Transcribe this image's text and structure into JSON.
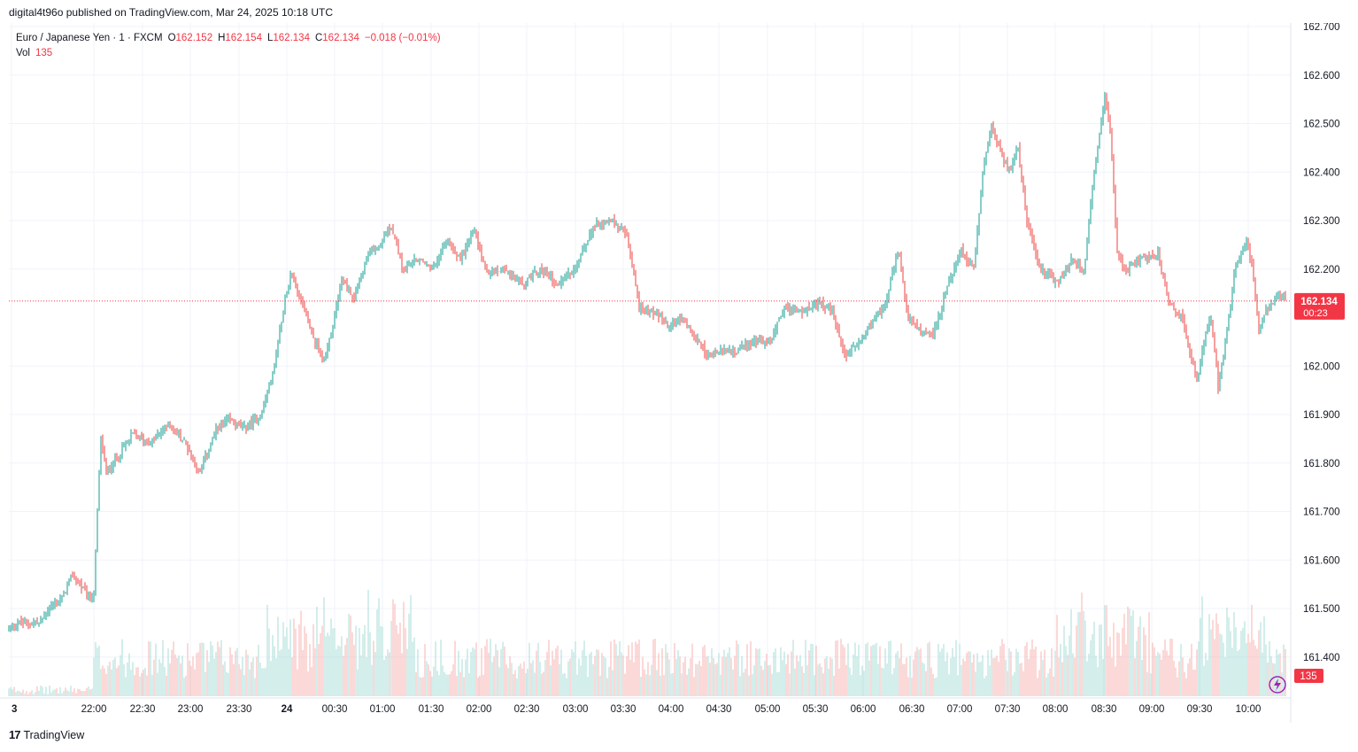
{
  "header": {
    "published_text": "digital4t96o published on TradingView.com, Mar 24, 2025 10:18 UTC"
  },
  "legend": {
    "symbol": "Euro / Japanese Yen · 1 · FXCM",
    "open_label": "O",
    "open_value": "162.152",
    "high_label": "H",
    "high_value": "162.154",
    "low_label": "L",
    "low_value": "162.134",
    "close_label": "C",
    "close_value": "162.134",
    "change": "−0.018 (−0.01%)",
    "vol_label": "Vol",
    "vol_value": "135"
  },
  "footer": {
    "logo_mark": "17",
    "logo_text": "TradingView"
  },
  "colors": {
    "up": "#26a69a",
    "down": "#ef5350",
    "price_label_bg": "#f23645",
    "grid": "#f0f3fa",
    "vol_up": "#a7dcd7",
    "vol_down": "#f7b3b1"
  },
  "chart_data": {
    "type": "candlestick",
    "symbol": "EURJPY",
    "interval_minutes": 1,
    "y_ticks": [
      "162.700",
      "162.600",
      "162.500",
      "162.400",
      "162.300",
      "162.200",
      "162.000",
      "161.900",
      "161.800",
      "161.700",
      "161.600",
      "161.500",
      "161.400"
    ],
    "y_range": [
      161.31,
      162.7
    ],
    "x_ticks": [
      "3",
      "22:00",
      "22:30",
      "23:00",
      "23:30",
      "24",
      "00:30",
      "01:00",
      "01:30",
      "02:00",
      "02:30",
      "03:00",
      "03:30",
      "04:00",
      "04:30",
      "05:00",
      "05:30",
      "06:00",
      "06:30",
      "07:00",
      "07:30",
      "08:00",
      "08:30",
      "09:00",
      "09:30",
      "10:00"
    ],
    "current_price": {
      "value": 162.134,
      "label": "162.134",
      "countdown": "00:23"
    },
    "volume_label": "135",
    "price_path": [
      [
        0,
        161.46
      ],
      [
        10,
        161.47
      ],
      [
        35,
        161.47
      ],
      [
        45,
        161.5
      ],
      [
        60,
        161.52
      ],
      [
        72,
        161.57
      ],
      [
        80,
        161.55
      ],
      [
        90,
        161.52
      ],
      [
        96,
        161.53
      ],
      [
        100,
        161.7
      ],
      [
        104,
        161.85
      ],
      [
        110,
        161.78
      ],
      [
        125,
        161.82
      ],
      [
        140,
        161.86
      ],
      [
        160,
        161.84
      ],
      [
        180,
        161.88
      ],
      [
        200,
        161.84
      ],
      [
        215,
        161.78
      ],
      [
        235,
        161.87
      ],
      [
        250,
        161.89
      ],
      [
        265,
        161.87
      ],
      [
        285,
        161.9
      ],
      [
        300,
        162.0
      ],
      [
        310,
        162.12
      ],
      [
        318,
        162.19
      ],
      [
        330,
        162.14
      ],
      [
        342,
        162.07
      ],
      [
        355,
        162.01
      ],
      [
        365,
        162.07
      ],
      [
        375,
        162.18
      ],
      [
        390,
        162.14
      ],
      [
        405,
        162.23
      ],
      [
        420,
        162.25
      ],
      [
        432,
        162.29
      ],
      [
        445,
        162.2
      ],
      [
        460,
        162.22
      ],
      [
        480,
        162.2
      ],
      [
        495,
        162.26
      ],
      [
        510,
        162.22
      ],
      [
        525,
        162.28
      ],
      [
        540,
        162.19
      ],
      [
        560,
        162.2
      ],
      [
        580,
        162.17
      ],
      [
        600,
        162.2
      ],
      [
        620,
        162.17
      ],
      [
        640,
        162.2
      ],
      [
        660,
        162.29
      ],
      [
        680,
        162.3
      ],
      [
        698,
        162.27
      ],
      [
        712,
        162.12
      ],
      [
        730,
        162.11
      ],
      [
        745,
        162.08
      ],
      [
        760,
        162.1
      ],
      [
        775,
        162.06
      ],
      [
        790,
        162.02
      ],
      [
        805,
        162.03
      ],
      [
        820,
        162.03
      ],
      [
        840,
        162.05
      ],
      [
        860,
        162.05
      ],
      [
        875,
        162.12
      ],
      [
        895,
        162.11
      ],
      [
        915,
        162.13
      ],
      [
        930,
        162.11
      ],
      [
        945,
        162.02
      ],
      [
        960,
        162.05
      ],
      [
        975,
        162.09
      ],
      [
        990,
        162.13
      ],
      [
        1005,
        162.24
      ],
      [
        1015,
        162.1
      ],
      [
        1030,
        162.07
      ],
      [
        1045,
        162.07
      ],
      [
        1060,
        162.16
      ],
      [
        1075,
        162.24
      ],
      [
        1090,
        162.2
      ],
      [
        1100,
        162.4
      ],
      [
        1110,
        162.5
      ],
      [
        1120,
        162.44
      ],
      [
        1130,
        162.4
      ],
      [
        1140,
        162.45
      ],
      [
        1150,
        162.3
      ],
      [
        1165,
        162.2
      ],
      [
        1185,
        162.17
      ],
      [
        1200,
        162.22
      ],
      [
        1215,
        162.2
      ],
      [
        1225,
        162.39
      ],
      [
        1238,
        162.56
      ],
      [
        1245,
        162.47
      ],
      [
        1252,
        162.23
      ],
      [
        1262,
        162.2
      ],
      [
        1280,
        162.22
      ],
      [
        1298,
        162.23
      ],
      [
        1310,
        162.13
      ],
      [
        1325,
        162.1
      ],
      [
        1335,
        162.02
      ],
      [
        1342,
        161.97
      ],
      [
        1350,
        162.05
      ],
      [
        1358,
        162.1
      ],
      [
        1366,
        161.96
      ],
      [
        1375,
        162.06
      ],
      [
        1385,
        162.2
      ],
      [
        1398,
        162.26
      ],
      [
        1405,
        162.2
      ],
      [
        1412,
        162.08
      ],
      [
        1425,
        162.13
      ],
      [
        1440,
        162.15
      ],
      [
        1443,
        162.134
      ]
    ]
  }
}
